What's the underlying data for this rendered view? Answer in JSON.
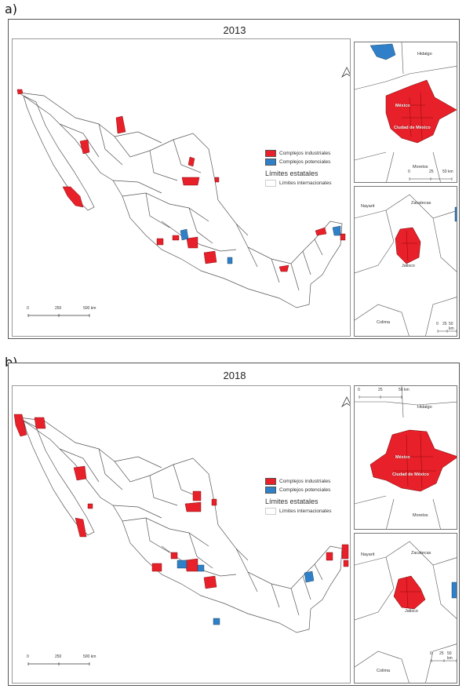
{
  "panels": [
    {
      "label": "a)",
      "year": "2013",
      "legend": {
        "items": [
          {
            "label": "Complejos industriales",
            "color": "#e8202a"
          },
          {
            "label": "Complejos potenciales",
            "color": "#2f80c8"
          }
        ],
        "group_title": "Límites estatales",
        "boundary_label": "Límites internacionales"
      },
      "scale": {
        "t0": "0",
        "t1": "250",
        "t2": "500 km"
      },
      "inset_top": {
        "labels": {
          "hidalgo": "Hidalgo",
          "mexico": "México",
          "cdmx": "Ciudad de México",
          "morelos": "Morelos"
        },
        "scale": {
          "t0": "0",
          "t1": "25",
          "t2": "50 km"
        }
      },
      "inset_bottom": {
        "labels": {
          "nayarit": "Nayarit",
          "zacatecas": "Zacatecas",
          "jalisco": "Jalisco",
          "colima": "Colima"
        },
        "scale": {
          "t0": "0",
          "t1": "25",
          "t2": "50 km"
        }
      }
    },
    {
      "label": "b)",
      "year": "2018",
      "legend": {
        "items": [
          {
            "label": "Complejos industriales",
            "color": "#e8202a"
          },
          {
            "label": "Complejos potenciales",
            "color": "#2f80c8"
          }
        ],
        "group_title": "Límites estatales",
        "boundary_label": "Límites internacionales"
      },
      "scale": {
        "t0": "0",
        "t1": "250",
        "t2": "500 km"
      },
      "inset_top": {
        "labels": {
          "hidalgo": "Hidalgo",
          "mexico": "México",
          "cdmx": "Ciudad de México",
          "morelos": "Morelos"
        },
        "scale": {
          "t0": "0",
          "t1": "25",
          "t2": "50 km"
        }
      },
      "inset_bottom": {
        "labels": {
          "nayarit": "Nayarit",
          "zacatecas": "Zacatecas",
          "jalisco": "Jalisco",
          "colima": "Colima"
        },
        "scale": {
          "t0": "0",
          "t1": "25",
          "t2": "50 km"
        }
      }
    }
  ],
  "colors": {
    "industrial": "#e8202a",
    "potential": "#2f80c8",
    "boundary": "#555555"
  }
}
